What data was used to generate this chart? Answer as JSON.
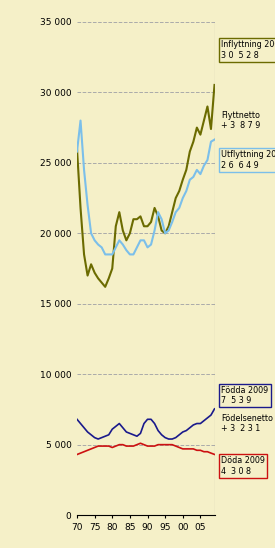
{
  "background_color": "#f5f0c8",
  "plot_bg_color": "#f5f0c8",
  "ylim": [
    0,
    35000
  ],
  "xlim": [
    1970,
    2009
  ],
  "yticks": [
    0,
    5000,
    10000,
    15000,
    20000,
    25000,
    30000,
    35000
  ],
  "ytick_labels": [
    "0",
    "5 000",
    "10 000",
    "15 000",
    "20 000",
    "25 000",
    "30 000",
    "35 000"
  ],
  "xticks": [
    1970,
    1975,
    1980,
    1985,
    1990,
    1995,
    2000,
    2005
  ],
  "xtick_labels": [
    "70",
    "75",
    "80",
    "85",
    "90",
    "95",
    "00",
    "05"
  ],
  "inflyttning_color": "#6b6b00",
  "utflyttning_color": "#7bbfea",
  "fodda_color": "#1a1a8c",
  "doda_color": "#cc1111",
  "inflyttning": [
    26000,
    21800,
    18500,
    17000,
    17800,
    17200,
    16800,
    16500,
    16200,
    16800,
    17500,
    20500,
    21500,
    20200,
    19500,
    20000,
    21000,
    21000,
    21200,
    20500,
    20500,
    20800,
    21800,
    21200,
    20200,
    20000,
    20500,
    21500,
    22500,
    23000,
    23800,
    24500,
    25800,
    26500,
    27500,
    27000,
    28000,
    29000,
    27400,
    30528
  ],
  "utflyttning": [
    25800,
    28000,
    24500,
    22000,
    20000,
    19500,
    19200,
    19000,
    18500,
    18500,
    18500,
    19000,
    19500,
    19200,
    18800,
    18500,
    18500,
    19000,
    19500,
    19500,
    19000,
    19200,
    20200,
    21500,
    21000,
    20000,
    20200,
    20800,
    21500,
    21800,
    22500,
    23000,
    23800,
    24000,
    24500,
    24200,
    24800,
    25200,
    26500,
    26649
  ],
  "fodda": [
    6800,
    6500,
    6200,
    5900,
    5700,
    5500,
    5400,
    5500,
    5600,
    5700,
    6100,
    6300,
    6500,
    6200,
    5900,
    5800,
    5700,
    5600,
    5800,
    6500,
    6800,
    6800,
    6500,
    6000,
    5700,
    5500,
    5400,
    5400,
    5500,
    5700,
    5900,
    6000,
    6200,
    6400,
    6500,
    6500,
    6700,
    6900,
    7100,
    7539
  ],
  "doda": [
    4300,
    4400,
    4500,
    4600,
    4700,
    4800,
    4900,
    4900,
    4900,
    4900,
    4800,
    4900,
    5000,
    5000,
    4900,
    4900,
    4900,
    5000,
    5100,
    5000,
    4900,
    4900,
    4900,
    5000,
    5000,
    5000,
    5000,
    5000,
    4900,
    4800,
    4700,
    4700,
    4700,
    4700,
    4600,
    4600,
    4500,
    4500,
    4400,
    4308
  ],
  "years": [
    1970,
    1971,
    1972,
    1973,
    1974,
    1975,
    1976,
    1977,
    1978,
    1979,
    1980,
    1981,
    1982,
    1983,
    1984,
    1985,
    1986,
    1987,
    1988,
    1989,
    1990,
    1991,
    1992,
    1993,
    1994,
    1995,
    1996,
    1997,
    1998,
    1999,
    2000,
    2001,
    2002,
    2003,
    2004,
    2005,
    2006,
    2007,
    2008,
    2009
  ],
  "grid_color": "#aaaaaa",
  "grid_style": "--",
  "linewidth_main": 1.5,
  "linewidth_small": 1.2,
  "figwidth": 2.75,
  "figheight": 5.48,
  "dpi": 100
}
